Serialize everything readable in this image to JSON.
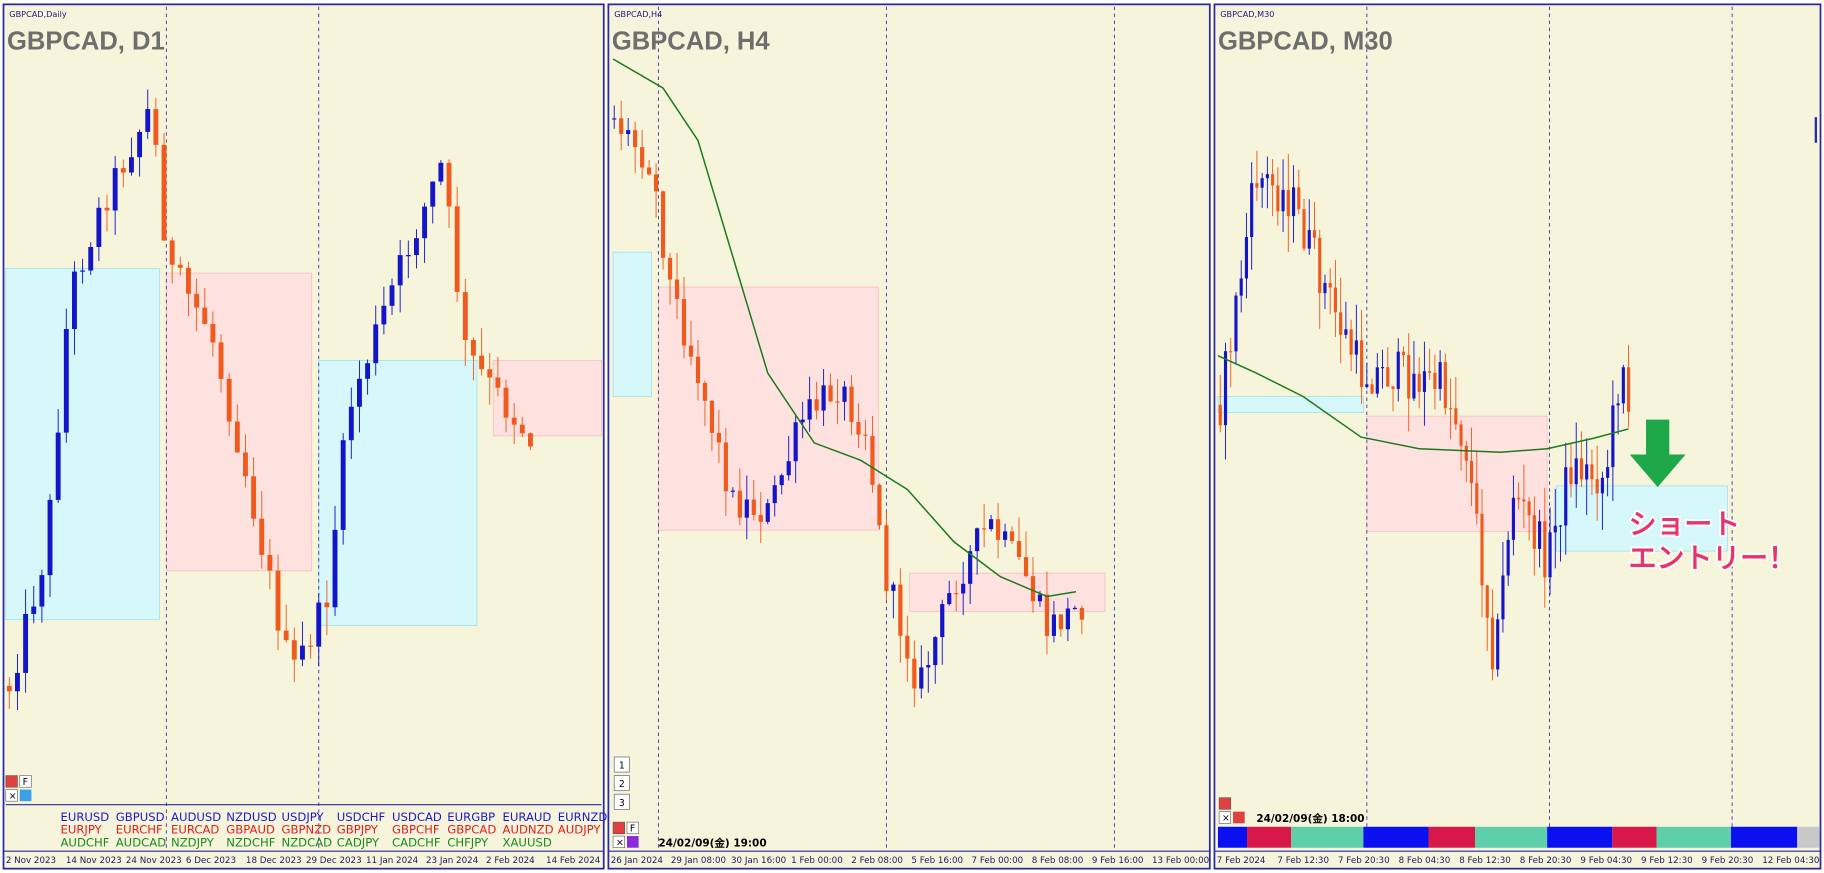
{
  "panels": [
    {
      "label": "GBPCAD,Daily",
      "title": "GBPCAD, D1",
      "dates": [
        "2 Nov 2023",
        "14 Nov 2023",
        "24 Nov 2023",
        "6 Dec 2023",
        "18 Dec 2023",
        "29 Dec 2023",
        "11 Jan 2024",
        "23 Jan 2024",
        "2 Feb 2024",
        "14 Feb 2024"
      ]
    },
    {
      "label": "GBPCAD,H4",
      "title": "GBPCAD, H4",
      "dates": [
        "26 Jan 2024",
        "29 Jan 08:00",
        "30 Jan 16:00",
        "1 Feb 00:00",
        "2 Feb 08:00",
        "5 Feb 16:00",
        "7 Feb 00:00",
        "8 Feb 08:00",
        "9 Feb 16:00",
        "13 Feb 00:00"
      ],
      "timestamp": "24/02/09(金) 19:00",
      "buttons": [
        "1",
        "2",
        "3"
      ]
    },
    {
      "label": "GBPCAD,M30",
      "title": "GBPCAD, M30",
      "dates": [
        "7 Feb 2024",
        "7 Feb 12:30",
        "7 Feb 20:30",
        "8 Feb 04:30",
        "8 Feb 12:30",
        "8 Feb 20:30",
        "9 Feb 04:30",
        "9 Feb 12:30",
        "9 Feb 20:30",
        "12 Feb 04:30"
      ],
      "timestamp": "24/02/09(金) 18:00",
      "annotation": [
        "ショート",
        "エントリー！"
      ]
    }
  ],
  "symbols": {
    "rows": [
      [
        "EURUSD",
        "GBPUSD",
        "AUDUSD",
        "NZDUSD",
        "USDJPY",
        "USDCHF",
        "USDCAD",
        "EURGBP",
        "EURAUD",
        "EURNZD"
      ],
      [
        "EURJPY",
        "EURCHF",
        "EURCAD",
        "GBPAUD",
        "GBPNZD",
        "GBPJPY",
        "GBPCHF",
        "GBPCAD",
        "AUDNZD",
        "AUDJPY"
      ],
      [
        "AUDCHF",
        "AUDCAD",
        "NZDJPY",
        "NZDCHF",
        "NZDCAD",
        "CADJPY",
        "CADCHF",
        "CHFJPY",
        "XAUUSD"
      ]
    ]
  },
  "controls": {
    "f": "F",
    "x": "×"
  }
}
